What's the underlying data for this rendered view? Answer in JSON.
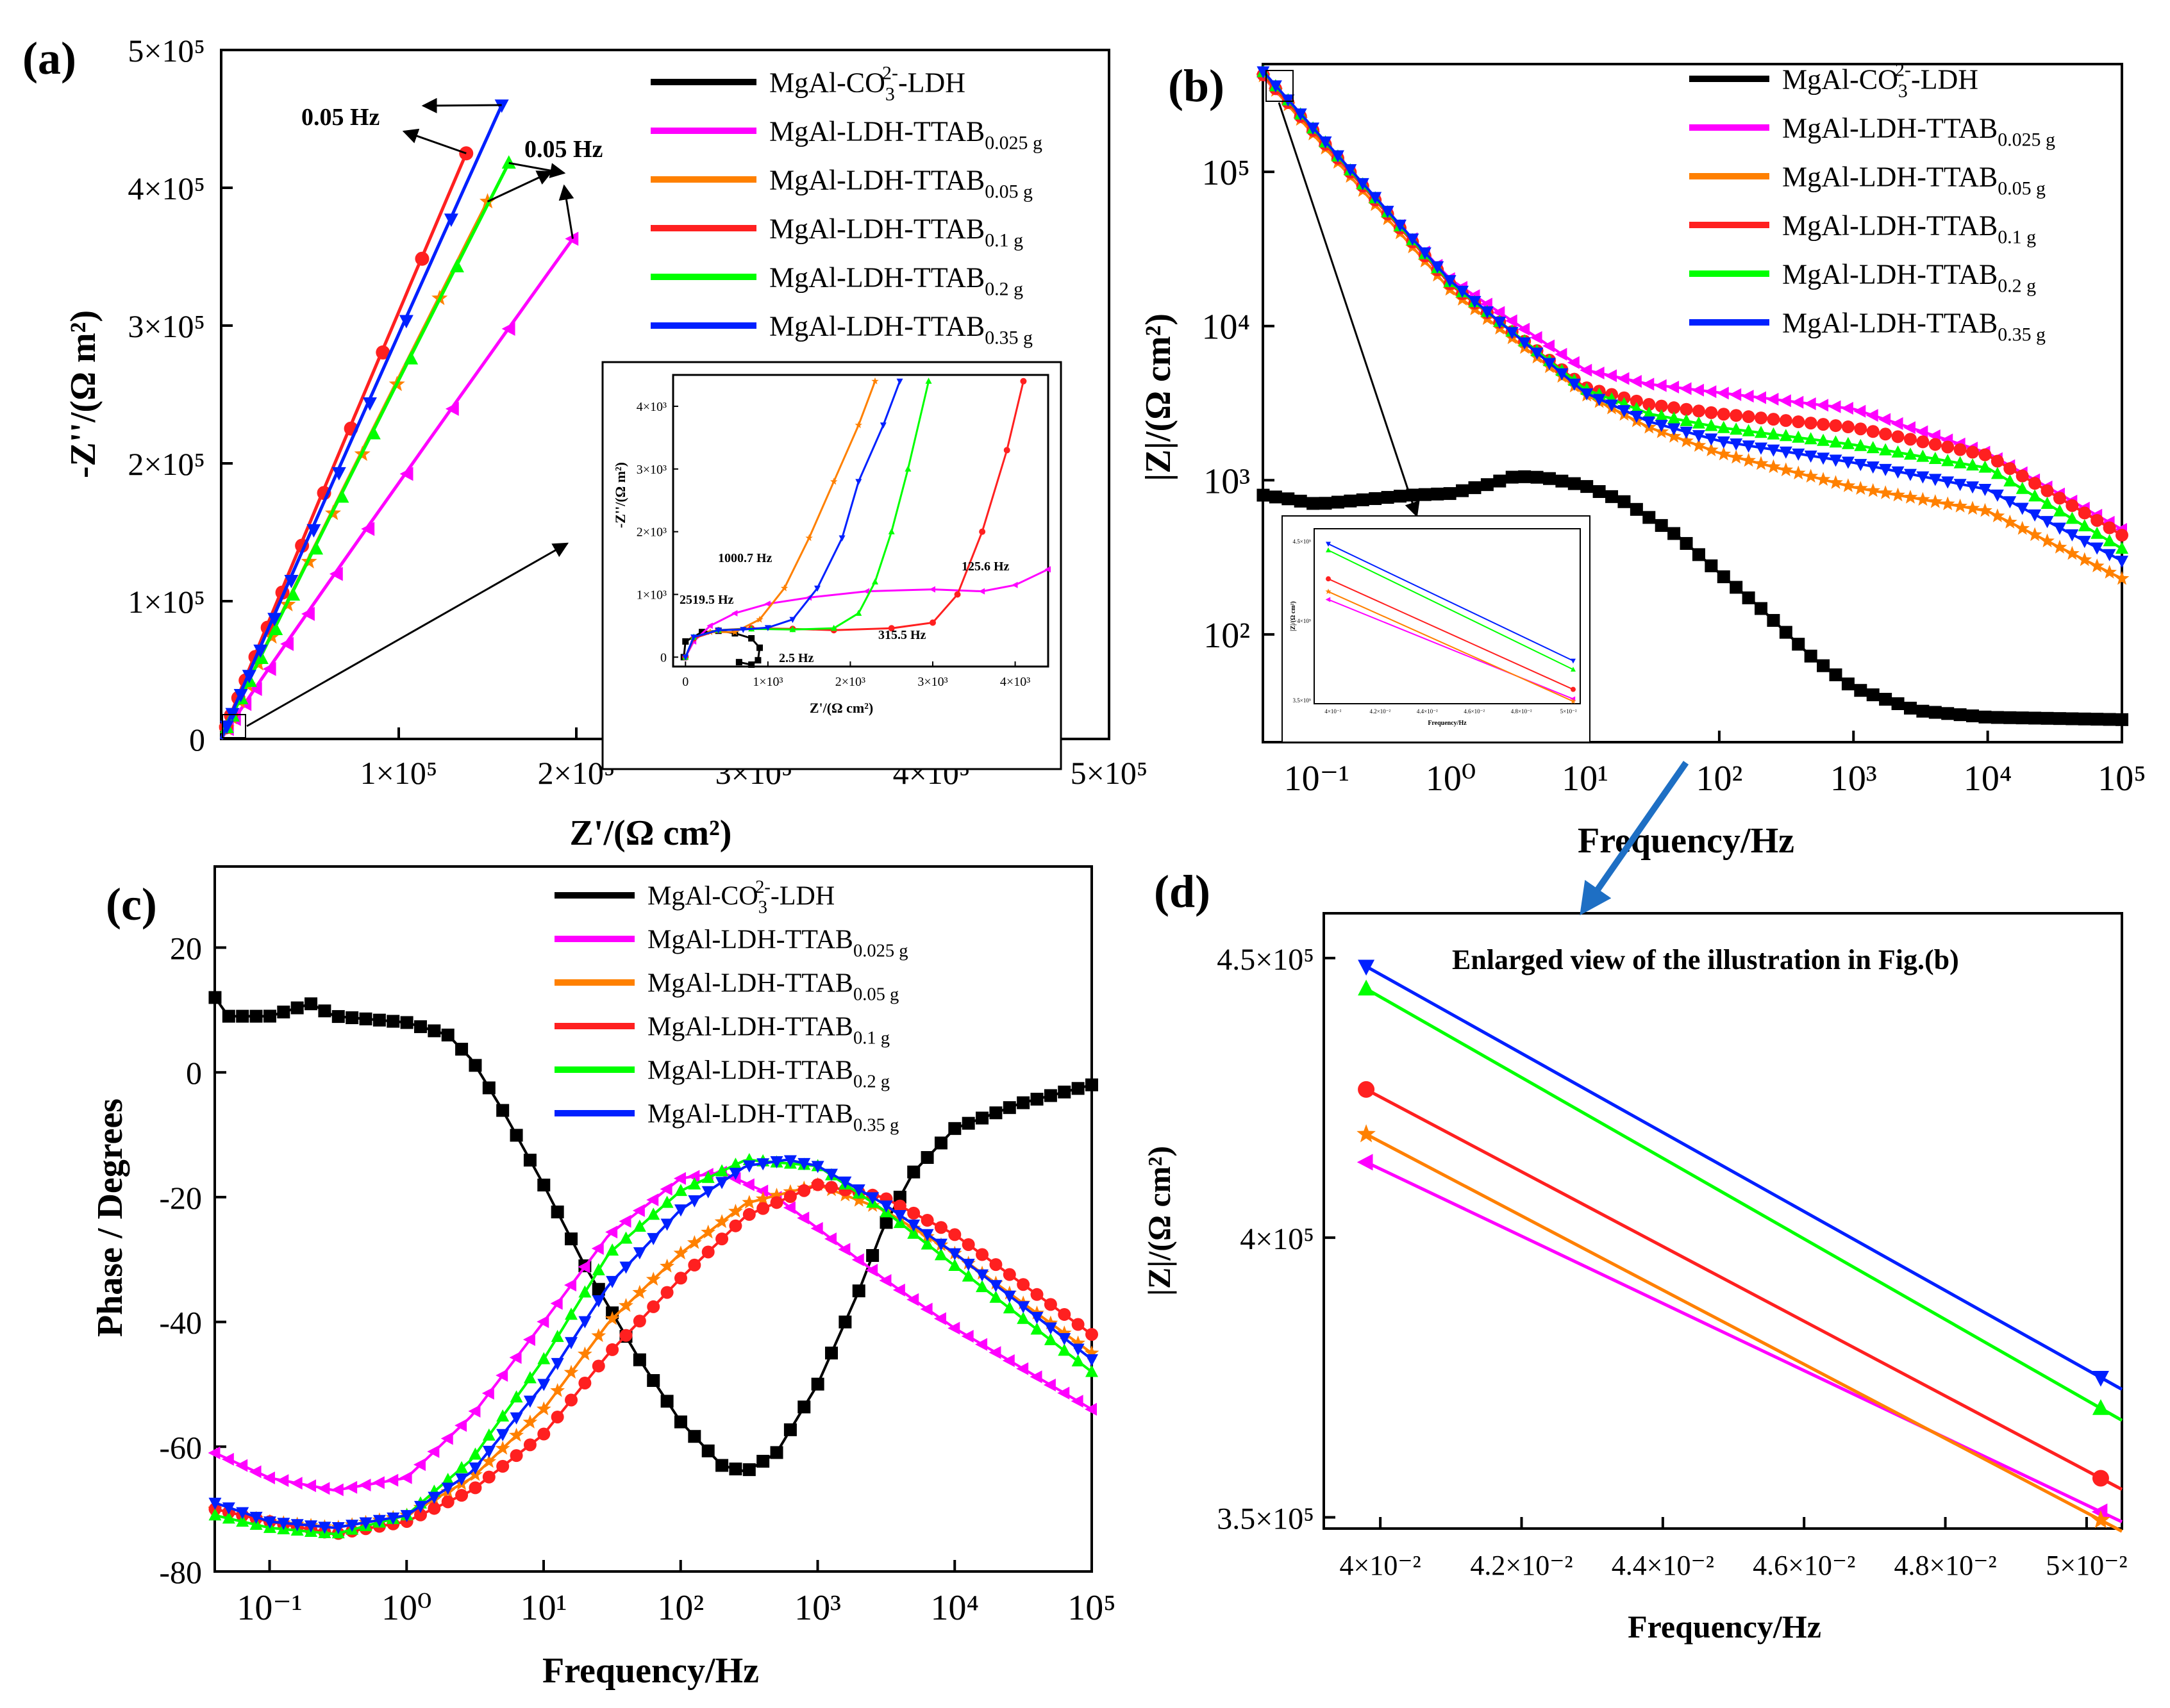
{
  "colors": {
    "MgAl-CO3-LDH": "#000000",
    "TTAB_0.025": "#ff00ff",
    "TTAB_0.05": "#ff8000",
    "TTAB_0.1": "#ff2020",
    "TTAB_0.2": "#00ff00",
    "TTAB_0.35": "#0020ff",
    "annotation_arrow": "#1e6fc4"
  },
  "legend": [
    {
      "key": "MgAl-CO3-LDH",
      "main": "MgAl-CO",
      "sub": "3",
      "sup": "2-",
      "tail": "-LDH",
      "marker": "square"
    },
    {
      "key": "TTAB_0.025",
      "main": "MgAl-LDH-TTAB",
      "sub": "0.025 g",
      "sup": "",
      "tail": "",
      "marker": "triangle-left"
    },
    {
      "key": "TTAB_0.05",
      "main": "MgAl-LDH-TTAB",
      "sub": "0.05 g",
      "sup": "",
      "tail": "",
      "marker": "star"
    },
    {
      "key": "TTAB_0.1",
      "main": "MgAl-LDH-TTAB",
      "sub": "0.1 g",
      "sup": "",
      "tail": "",
      "marker": "circle"
    },
    {
      "key": "TTAB_0.2",
      "main": "MgAl-LDH-TTAB",
      "sub": "0.2 g",
      "sup": "",
      "tail": "",
      "marker": "triangle-up"
    },
    {
      "key": "TTAB_0.35",
      "main": "MgAl-LDH-TTAB",
      "sub": "0.35 g",
      "sup": "",
      "tail": "",
      "marker": "triangle-down"
    }
  ],
  "chart_data": [
    {
      "panel": "(a)",
      "type": "scatter",
      "title": "",
      "xlabel": "Z'/(Ω cm²)",
      "ylabel": "-Z''/(Ω m²)",
      "xlim": [
        0,
        500000
      ],
      "ylim": [
        0,
        500000
      ],
      "xticks": [
        "1×10⁵",
        "2×10⁵",
        "3×10⁵",
        "4×10⁵",
        "5×10⁵"
      ],
      "yticks": [
        "0",
        "1×10⁵",
        "2×10⁵",
        "3×10⁵",
        "4×10⁵",
        "5×10⁵"
      ],
      "annotations": [
        "0.05 Hz",
        "0.05 Hz"
      ],
      "series": [
        {
          "key": "TTAB_0.025",
          "end": [
            198000,
            363000
          ]
        },
        {
          "key": "TTAB_0.05",
          "end": [
            150000,
            390000
          ]
        },
        {
          "key": "TTAB_0.1",
          "end": [
            138000,
            425000
          ]
        },
        {
          "key": "TTAB_0.2",
          "end": [
            162000,
            418000
          ]
        },
        {
          "key": "TTAB_0.35",
          "end": [
            158000,
            460000
          ]
        }
      ],
      "inset": {
        "xlabel": "Z'/(Ω cm²)",
        "ylabel": "-Z''/(Ω m²)",
        "xlim": [
          -150,
          4400
        ],
        "ylim": [
          -150,
          4500
        ],
        "xticks": [
          "0",
          "1×10³",
          "2×10³",
          "3×10³",
          "4×10³"
        ],
        "yticks": [
          "0",
          "1×10³",
          "2×10³",
          "3×10³",
          "4×10³"
        ],
        "annotations": [
          "1000.7 Hz",
          "2519.5 Hz",
          "125.6 Hz",
          "315.5 Hz",
          "2.5 Hz"
        ]
      }
    },
    {
      "panel": "(b)",
      "type": "line",
      "title": "",
      "xlabel": "Frequency/Hz",
      "ylabel": "|Z|/(Ω cm²)",
      "xscale": "log",
      "yscale": "log",
      "xlim": [
        0.0398,
        100000
      ],
      "ylim": [
        20,
        500000
      ],
      "xticks": [
        "10⁻¹",
        "10⁰",
        "10¹",
        "10²",
        "10³",
        "10⁴",
        "10⁵"
      ],
      "yticks": [
        "10²",
        "10³",
        "10⁴",
        "10⁵"
      ],
      "series": [
        {
          "key": "MgAl-CO3-LDH",
          "points": [
            [
              0.04,
              800
            ],
            [
              0.06,
              760
            ],
            [
              0.1,
              700
            ],
            [
              0.2,
              740
            ],
            [
              0.5,
              800
            ],
            [
              1,
              820
            ],
            [
              2,
              950
            ],
            [
              3,
              1060
            ],
            [
              5,
              1040
            ],
            [
              10,
              920
            ],
            [
              20,
              720
            ],
            [
              50,
              430
            ],
            [
              100,
              250
            ],
            [
              200,
              150
            ],
            [
              500,
              70
            ],
            [
              1000,
              45
            ],
            [
              3000,
              32
            ],
            [
              10000,
              29
            ],
            [
              100000,
              28
            ]
          ]
        },
        {
          "key": "TTAB_0.025",
          "points": [
            [
              0.04,
              413000
            ],
            [
              0.1,
              170000
            ],
            [
              1,
              20000
            ],
            [
              10,
              5200
            ],
            [
              30,
              4200
            ],
            [
              100,
              3700
            ],
            [
              1000,
              2900
            ],
            [
              10000,
              1500
            ],
            [
              100000,
              480
            ]
          ]
        },
        {
          "key": "TTAB_0.05",
          "points": [
            [
              0.04,
              418000
            ],
            [
              0.1,
              165000
            ],
            [
              1,
              17000
            ],
            [
              10,
              3600
            ],
            [
              30,
              2200
            ],
            [
              100,
              1500
            ],
            [
              1000,
              900
            ],
            [
              10000,
              630
            ],
            [
              100000,
              230
            ]
          ]
        },
        {
          "key": "TTAB_0.1",
          "points": [
            [
              0.04,
              426000
            ],
            [
              0.1,
              175000
            ],
            [
              1,
              18500
            ],
            [
              10,
              4000
            ],
            [
              30,
              3100
            ],
            [
              100,
              2700
            ],
            [
              1000,
              2200
            ],
            [
              10000,
              1450
            ],
            [
              100000,
              440
            ]
          ]
        },
        {
          "key": "TTAB_0.2",
          "points": [
            [
              0.04,
              444000
            ],
            [
              0.1,
              180000
            ],
            [
              1,
              19000
            ],
            [
              10,
              3900
            ],
            [
              30,
              2700
            ],
            [
              100,
              2200
            ],
            [
              1000,
              1700
            ],
            [
              10000,
              1200
            ],
            [
              100000,
              360
            ]
          ]
        },
        {
          "key": "TTAB_0.35",
          "points": [
            [
              0.04,
              448000
            ],
            [
              0.1,
              182000
            ],
            [
              1,
              19500
            ],
            [
              10,
              3700
            ],
            [
              30,
              2400
            ],
            [
              100,
              1800
            ],
            [
              1000,
              1300
            ],
            [
              10000,
              870
            ],
            [
              100000,
              300
            ]
          ]
        }
      ]
    },
    {
      "panel": "(c)",
      "type": "line",
      "title": "",
      "xlabel": "Frequency/Hz",
      "ylabel": "Phase / Degrees",
      "xscale": "log",
      "xlim": [
        0.0398,
        100000
      ],
      "ylim": [
        -80,
        33
      ],
      "xticks": [
        "10⁻¹",
        "10⁰",
        "10¹",
        "10²",
        "10³",
        "10⁴",
        "10⁵"
      ],
      "yticks": [
        "-80",
        "-60",
        "-40",
        "-20",
        "0",
        "20"
      ],
      "series": [
        {
          "key": "MgAl-CO3-LDH",
          "points": [
            [
              0.04,
              12
            ],
            [
              0.05,
              9
            ],
            [
              0.1,
              9
            ],
            [
              0.2,
              11
            ],
            [
              0.3,
              9
            ],
            [
              1,
              8
            ],
            [
              2,
              6
            ],
            [
              3,
              2
            ],
            [
              5,
              -6
            ],
            [
              10,
              -18
            ],
            [
              20,
              -31
            ],
            [
              50,
              -46
            ],
            [
              100,
              -56
            ],
            [
              200,
              -63
            ],
            [
              300,
              -64
            ],
            [
              500,
              -61
            ],
            [
              1000,
              -50
            ],
            [
              2000,
              -35
            ],
            [
              3000,
              -25
            ],
            [
              5000,
              -16
            ],
            [
              10000,
              -9
            ],
            [
              30000,
              -5
            ],
            [
              100000,
              -2
            ]
          ]
        },
        {
          "key": "TTAB_0.025",
          "points": [
            [
              0.04,
              -61
            ],
            [
              0.1,
              -65
            ],
            [
              0.3,
              -67
            ],
            [
              1,
              -65
            ],
            [
              3,
              -55
            ],
            [
              10,
              -40
            ],
            [
              30,
              -26
            ],
            [
              100,
              -17
            ],
            [
              200,
              -16
            ],
            [
              500,
              -20
            ],
            [
              1000,
              -25
            ],
            [
              3000,
              -33
            ],
            [
              10000,
              -41
            ],
            [
              100000,
              -54
            ]
          ]
        },
        {
          "key": "TTAB_0.05",
          "points": [
            [
              0.04,
              -70
            ],
            [
              0.1,
              -72
            ],
            [
              0.3,
              -73
            ],
            [
              1,
              -71
            ],
            [
              3,
              -65
            ],
            [
              10,
              -54
            ],
            [
              30,
              -40
            ],
            [
              100,
              -29
            ],
            [
              300,
              -21
            ],
            [
              1000,
              -18
            ],
            [
              3000,
              -22
            ],
            [
              10000,
              -29
            ],
            [
              100000,
              -45
            ]
          ]
        },
        {
          "key": "TTAB_0.1",
          "points": [
            [
              0.04,
              -70
            ],
            [
              0.1,
              -72
            ],
            [
              0.3,
              -74
            ],
            [
              1,
              -72
            ],
            [
              3,
              -67
            ],
            [
              10,
              -58
            ],
            [
              30,
              -45
            ],
            [
              100,
              -33
            ],
            [
              300,
              -23
            ],
            [
              1000,
              -18
            ],
            [
              3000,
              -20
            ],
            [
              10000,
              -26
            ],
            [
              100000,
              -42
            ]
          ]
        },
        {
          "key": "TTAB_0.2",
          "points": [
            [
              0.04,
              -71
            ],
            [
              0.1,
              -73
            ],
            [
              0.3,
              -74
            ],
            [
              1,
              -71
            ],
            [
              3,
              -62
            ],
            [
              10,
              -46
            ],
            [
              30,
              -29
            ],
            [
              100,
              -19
            ],
            [
              300,
              -14
            ],
            [
              1000,
              -15
            ],
            [
              3000,
              -22
            ],
            [
              10000,
              -31
            ],
            [
              100000,
              -48
            ]
          ]
        },
        {
          "key": "TTAB_0.35",
          "points": [
            [
              0.04,
              -69
            ],
            [
              0.1,
              -72
            ],
            [
              0.3,
              -73
            ],
            [
              1,
              -71
            ],
            [
              3,
              -64
            ],
            [
              10,
              -50
            ],
            [
              30,
              -34
            ],
            [
              100,
              -22
            ],
            [
              300,
              -15
            ],
            [
              600,
              -14
            ],
            [
              1000,
              -15
            ],
            [
              3000,
              -21
            ],
            [
              10000,
              -29
            ],
            [
              100000,
              -46
            ]
          ]
        }
      ]
    },
    {
      "panel": "(d)",
      "type": "line",
      "title": "Enlarged view of the illustration in Fig.(b)",
      "xlabel": "Frequency/Hz",
      "ylabel": "|Z|/(Ω cm²)",
      "xlim": [
        0.0392,
        0.0505
      ],
      "ylim": [
        348000,
        458000
      ],
      "xticks": [
        "4×10⁻²",
        "4.2×10⁻²",
        "4.4×10⁻²",
        "4.6×10⁻²",
        "4.8×10⁻²",
        "5×10⁻²"
      ],
      "yticks": [
        "3.5×10⁵",
        "4×10⁵",
        "4.5×10⁵"
      ],
      "series": [
        {
          "key": "TTAB_0.025",
          "points": [
            [
              0.0398,
              413500
            ],
            [
              0.0502,
              351000
            ]
          ]
        },
        {
          "key": "TTAB_0.05",
          "points": [
            [
              0.0398,
              418500
            ],
            [
              0.0502,
              349500
            ]
          ]
        },
        {
          "key": "TTAB_0.1",
          "points": [
            [
              0.0398,
              426500
            ],
            [
              0.0502,
              357000
            ]
          ]
        },
        {
          "key": "TTAB_0.2",
          "points": [
            [
              0.0398,
              444500
            ],
            [
              0.0502,
              369500
            ]
          ]
        },
        {
          "key": "TTAB_0.35",
          "points": [
            [
              0.0398,
              448500
            ],
            [
              0.0502,
              375000
            ]
          ]
        }
      ]
    }
  ],
  "panel_labels": [
    "(a)",
    "(b)",
    "(c)",
    "(d)"
  ]
}
